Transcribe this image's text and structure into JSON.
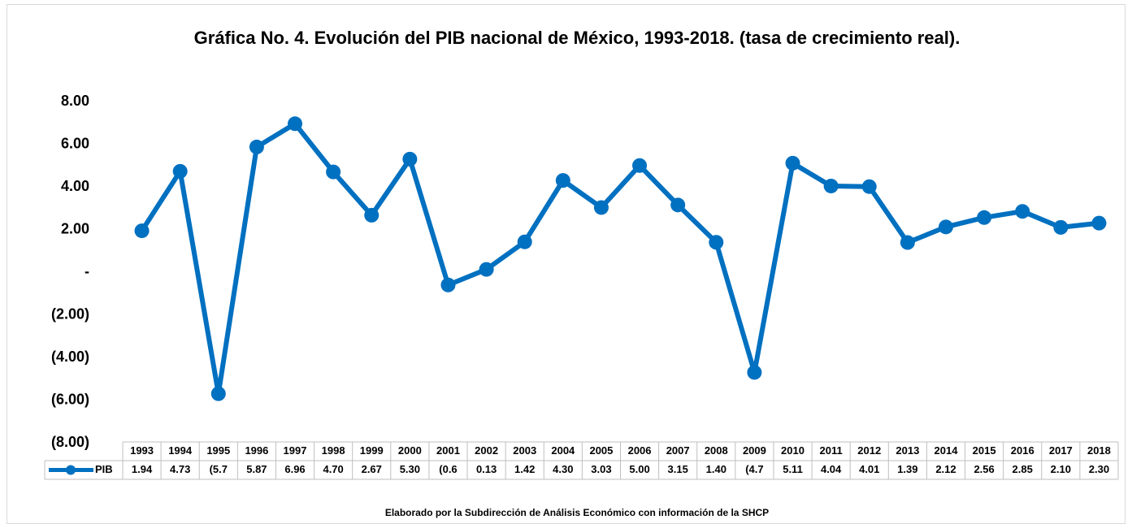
{
  "chart_data": {
    "type": "line",
    "title": "Gráfica No. 4. Evolución del PIB nacional de México, 1993-2018. (tasa de crecimiento real).",
    "note": "Elaborado por la Subdirección de Análisis Económico con información de la SHCP",
    "categories": [
      "1993",
      "1994",
      "1995",
      "1996",
      "1997",
      "1998",
      "1999",
      "2000",
      "2001",
      "2002",
      "2003",
      "2004",
      "2005",
      "2006",
      "2007",
      "2008",
      "2009",
      "2010",
      "2011",
      "2012",
      "2013",
      "2014",
      "2015",
      "2016",
      "2017",
      "2018"
    ],
    "series": [
      {
        "name": "PIB",
        "color": "#0070c0",
        "values": [
          1.94,
          4.73,
          -5.7,
          5.87,
          6.96,
          4.7,
          2.67,
          5.3,
          -0.6,
          0.13,
          1.42,
          4.3,
          3.03,
          5.0,
          3.15,
          1.4,
          -4.7,
          5.11,
          4.04,
          4.01,
          1.39,
          2.12,
          2.56,
          2.85,
          2.1,
          2.3
        ],
        "value_labels": [
          "1.94",
          "4.73",
          "(5.7",
          "5.87",
          "6.96",
          "4.70",
          "2.67",
          "5.30",
          "(0.6",
          "0.13",
          "1.42",
          "4.30",
          "3.03",
          "5.00",
          "3.15",
          "1.40",
          "(4.7",
          "5.11",
          "4.04",
          "4.01",
          "1.39",
          "2.12",
          "2.56",
          "2.85",
          "2.10",
          "2.30"
        ]
      }
    ],
    "ylim": [
      -8,
      8
    ],
    "yticks": [
      {
        "value": -8,
        "label": "(8.00)"
      },
      {
        "value": -6,
        "label": "(6.00)"
      },
      {
        "value": -4,
        "label": "(4.00)"
      },
      {
        "value": -2,
        "label": "(2.00)"
      },
      {
        "value": 0,
        "label": "-"
      },
      {
        "value": 2,
        "label": "2.00"
      },
      {
        "value": 4,
        "label": "4.00"
      },
      {
        "value": 6,
        "label": "6.00"
      },
      {
        "value": 8,
        "label": "8.00"
      }
    ],
    "grid": false
  }
}
